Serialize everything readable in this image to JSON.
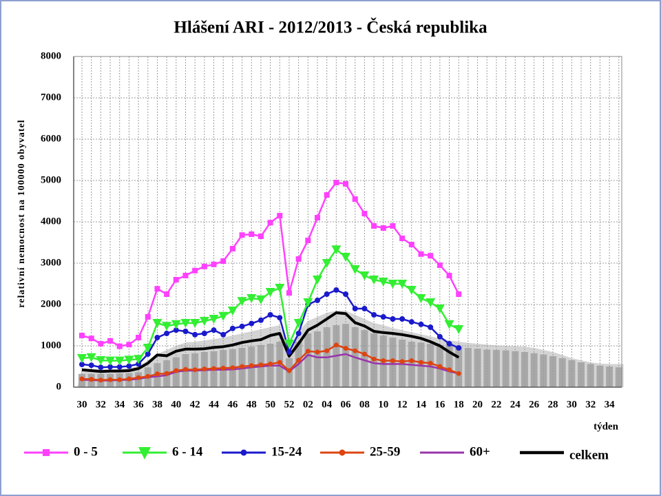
{
  "chart_data": {
    "type": "line",
    "title": "Hlášení ARI - 2012/2013 - Česká republika",
    "y_label": "relativní nemocnost na 100000 obyvatel",
    "x_label": "týden",
    "categories": [
      "30",
      null,
      "32",
      null,
      "34",
      null,
      "36",
      null,
      "38",
      null,
      "40",
      null,
      "42",
      null,
      "44",
      null,
      "46",
      null,
      "48",
      null,
      "50",
      null,
      "52",
      null,
      "02",
      null,
      "04",
      null,
      "06",
      null,
      "08",
      null,
      "10",
      null,
      "12",
      null,
      "14",
      null,
      "16",
      null,
      "18",
      null,
      "20",
      null,
      "22",
      null,
      "24",
      null,
      "26",
      null,
      "28",
      null,
      "30",
      null,
      "32",
      null,
      "34",
      null
    ],
    "ylim": [
      0,
      8000
    ],
    "yticks": [
      0,
      1000,
      2000,
      3000,
      4000,
      5000,
      6000,
      7000,
      8000
    ],
    "grid": true,
    "legend": "bottom",
    "areas": [
      {
        "color": "#d4d4d4",
        "values": [
          450,
          440,
          430,
          430,
          440,
          460,
          500,
          650,
          800,
          900,
          1000,
          1080,
          1100,
          1130,
          1160,
          1200,
          1250,
          1300,
          1350,
          1400,
          1450,
          1500,
          900,
          1350,
          1600,
          1700,
          1800,
          1850,
          1850,
          1750,
          1650,
          1550,
          1500,
          1430,
          1380,
          1330,
          1280,
          1230,
          1180,
          1130,
          1100,
          1070,
          1050,
          1030,
          1010,
          1000,
          990,
          980,
          950,
          900,
          850,
          780,
          700,
          650,
          600,
          570,
          560,
          560
        ]
      },
      {
        "color": "#a8a8a8",
        "values": [
          320,
          320,
          320,
          320,
          330,
          340,
          360,
          480,
          580,
          650,
          720,
          800,
          820,
          850,
          870,
          900,
          920,
          950,
          980,
          1020,
          1050,
          1100,
          700,
          1100,
          1300,
          1350,
          1450,
          1500,
          1530,
          1450,
          1380,
          1300,
          1250,
          1200,
          1150,
          1100,
          1080,
          1050,
          1020,
          1000,
          970,
          950,
          930,
          910,
          900,
          890,
          870,
          850,
          820,
          790,
          750,
          700,
          650,
          600,
          560,
          520,
          500,
          480
        ]
      }
    ],
    "series": [
      {
        "name": "0 - 5",
        "color": "#ff40ff",
        "marker": "square",
        "values": [
          1250,
          1180,
          1050,
          1120,
          990,
          1030,
          1200,
          1700,
          2380,
          2250,
          2600,
          2700,
          2820,
          2920,
          2970,
          3050,
          3350,
          3680,
          3700,
          3650,
          3980,
          4150,
          2280,
          3100,
          3550,
          4100,
          4650,
          4950,
          4920,
          4550,
          4200,
          3900,
          3850,
          3900,
          3600,
          3450,
          3220,
          3180,
          2950,
          2700,
          2250,
          null,
          null,
          null,
          null,
          null,
          null,
          null,
          null,
          null,
          null,
          null,
          null,
          null,
          null,
          null,
          null,
          null
        ]
      },
      {
        "name": "6 - 14",
        "color": "#33ee33",
        "marker": "triangle",
        "values": [
          700,
          720,
          650,
          640,
          640,
          660,
          680,
          950,
          1550,
          1480,
          1520,
          1550,
          1550,
          1600,
          1650,
          1720,
          1850,
          2080,
          2150,
          2120,
          2300,
          2400,
          1050,
          1550,
          2050,
          2600,
          3000,
          3330,
          3150,
          2850,
          2700,
          2600,
          2550,
          2500,
          2500,
          2350,
          2150,
          2050,
          1900,
          1520,
          1400,
          null,
          null,
          null,
          null,
          null,
          null,
          null,
          null,
          null,
          null,
          null,
          null,
          null,
          null,
          null,
          null,
          null
        ]
      },
      {
        "name": "15-24",
        "color": "#1a1acc",
        "marker": "circle",
        "values": [
          550,
          530,
          480,
          490,
          490,
          510,
          560,
          800,
          1200,
          1300,
          1380,
          1350,
          1270,
          1300,
          1380,
          1270,
          1420,
          1470,
          1540,
          1620,
          1750,
          1680,
          850,
          1300,
          2000,
          2100,
          2250,
          2350,
          2250,
          1900,
          1900,
          1750,
          1700,
          1650,
          1650,
          1580,
          1520,
          1450,
          1220,
          1050,
          950,
          null,
          null,
          null,
          null,
          null,
          null,
          null,
          null,
          null,
          null,
          null,
          null,
          null,
          null,
          null,
          null,
          null
        ]
      },
      {
        "name": "25-59",
        "color": "#dd4411",
        "marker": "dot",
        "values": [
          200,
          190,
          170,
          180,
          180,
          200,
          230,
          260,
          320,
          330,
          400,
          430,
          420,
          440,
          450,
          460,
          470,
          500,
          520,
          540,
          560,
          600,
          400,
          650,
          870,
          850,
          880,
          1020,
          940,
          880,
          800,
          680,
          640,
          640,
          620,
          640,
          600,
          580,
          500,
          420,
          330,
          null,
          null,
          null,
          null,
          null,
          null,
          null,
          null,
          null,
          null,
          null,
          null,
          null,
          null,
          null,
          null,
          null
        ]
      },
      {
        "name": "60+",
        "color": "#9933aa",
        "marker": "none",
        "values": [
          180,
          170,
          160,
          160,
          170,
          180,
          200,
          240,
          260,
          290,
          370,
          400,
          400,
          410,
          420,
          420,
          430,
          450,
          480,
          500,
          520,
          520,
          380,
          560,
          780,
          720,
          720,
          760,
          800,
          720,
          650,
          580,
          560,
          560,
          560,
          540,
          520,
          500,
          450,
          380,
          330,
          null,
          null,
          null,
          null,
          null,
          null,
          null,
          null,
          null,
          null,
          null,
          null,
          null,
          null,
          null,
          null,
          null
        ]
      },
      {
        "name": "celkem",
        "color": "#000000",
        "marker": "none",
        "width": 4,
        "values": [
          420,
          400,
          380,
          390,
          390,
          400,
          450,
          580,
          780,
          760,
          870,
          920,
          920,
          930,
          960,
          980,
          1020,
          1080,
          1120,
          1150,
          1250,
          1300,
          750,
          1050,
          1380,
          1500,
          1650,
          1800,
          1780,
          1560,
          1480,
          1350,
          1320,
          1300,
          1270,
          1230,
          1180,
          1100,
          1000,
          850,
          720,
          null,
          null,
          null,
          null,
          null,
          null,
          null,
          null,
          null,
          null,
          null,
          null,
          null,
          null,
          null,
          null,
          null
        ]
      }
    ]
  }
}
